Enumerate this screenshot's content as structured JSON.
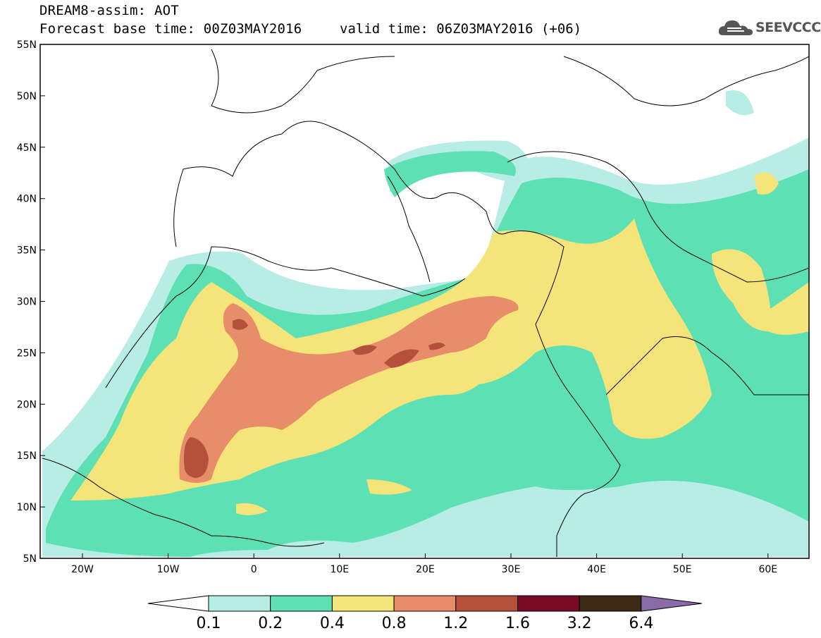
{
  "title": {
    "line1": "DREAM8-assim: AOT",
    "line2": "Forecast base time: 00Z03MAY2016",
    "valid": "valid time: 06Z03MAY2016 (+06)"
  },
  "logo": {
    "text": "SEEVCCC",
    "icon": "cloud-icon"
  },
  "map": {
    "lat_labels": [
      "55N",
      "50N",
      "45N",
      "40N",
      "35N",
      "30N",
      "25N",
      "20N",
      "15N",
      "10N",
      "5N"
    ],
    "lon_labels": [
      "20W",
      "10W",
      "0",
      "10E",
      "20E",
      "30E",
      "40E",
      "50E",
      "60E"
    ]
  },
  "colorbar": {
    "colors": [
      "#ffffff",
      "#b7ede4",
      "#5ce0b4",
      "#f5e479",
      "#e88d6a",
      "#b5503c",
      "#7a0a26",
      "#3d2a16",
      "#8a6aa8"
    ],
    "labels": [
      "0.1",
      "0.2",
      "0.4",
      "0.8",
      "1.2",
      "1.6",
      "3.2",
      "6.4"
    ]
  }
}
